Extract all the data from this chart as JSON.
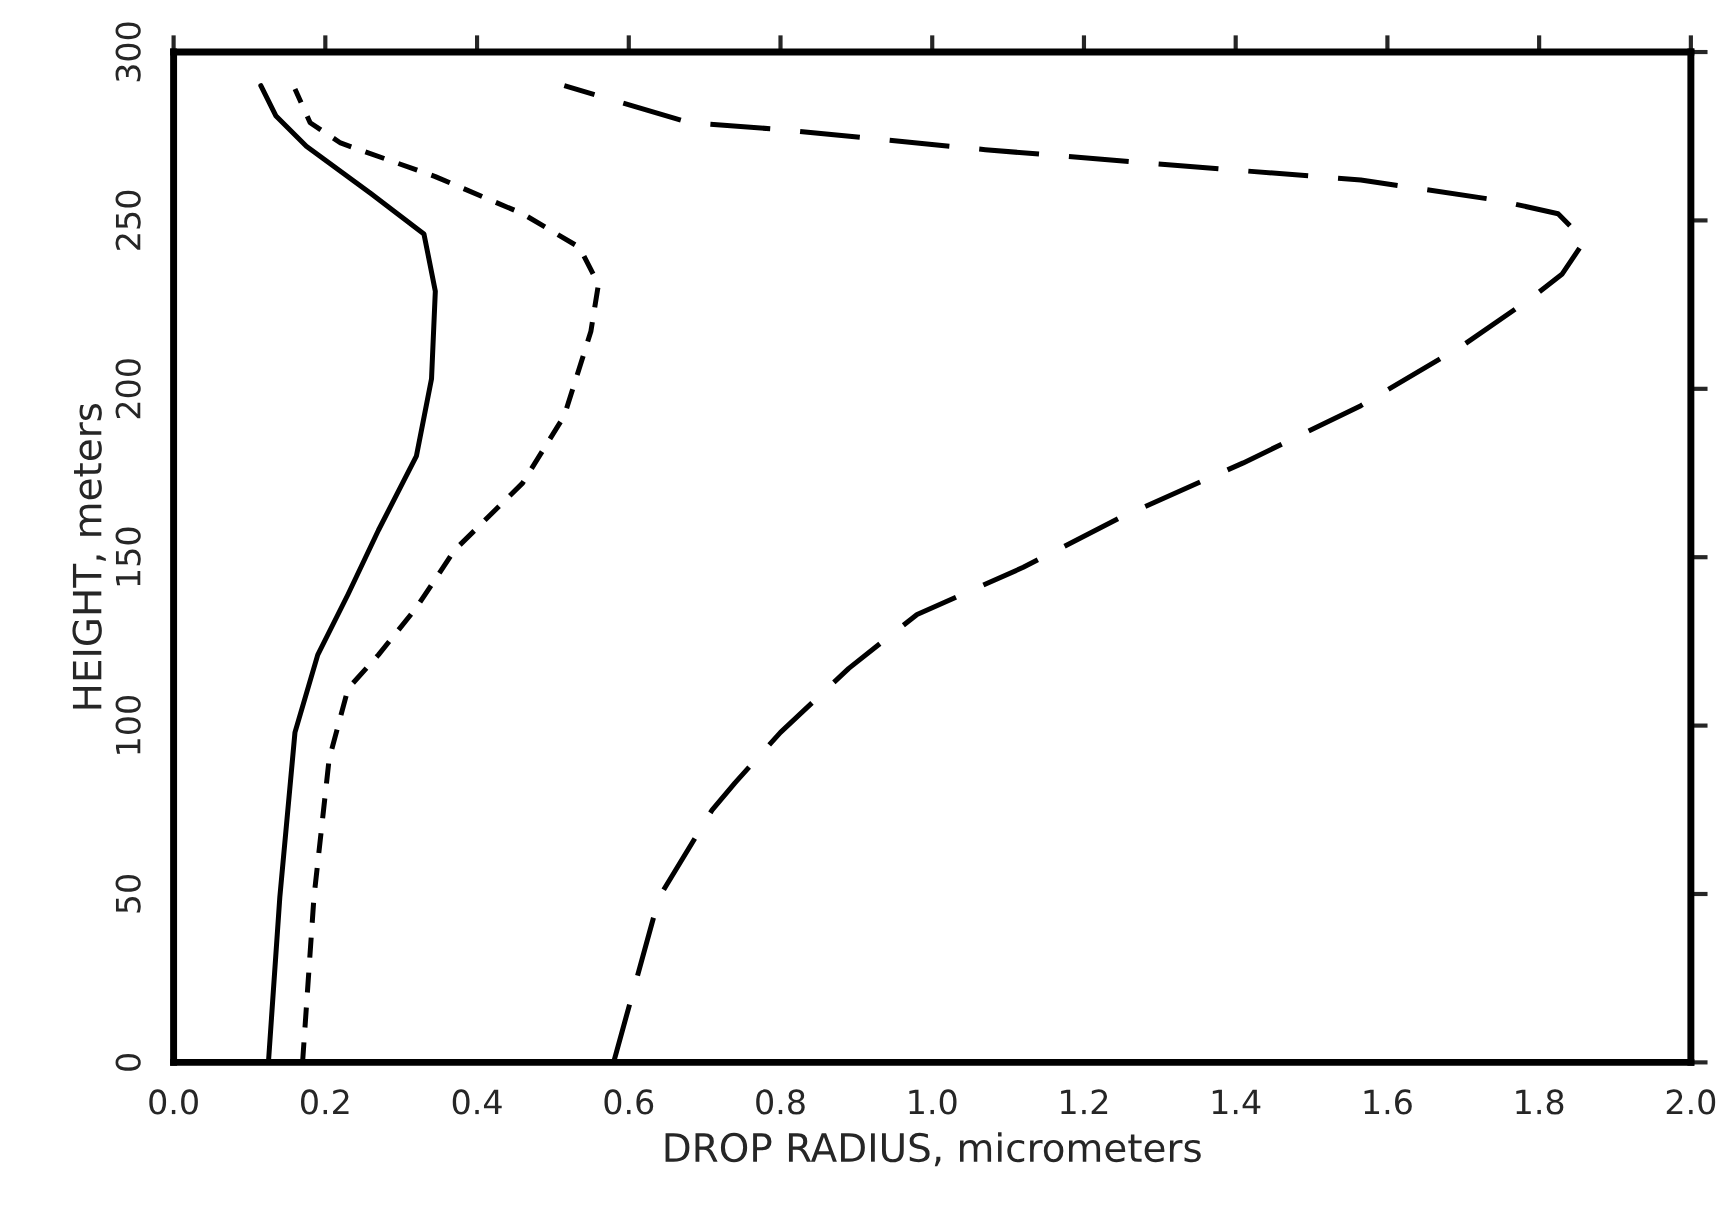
{
  "chart_data": {
    "type": "line",
    "xlabel": "DROP RADIUS, micrometers",
    "ylabel": "HEIGHT, meters",
    "xlim": [
      0.0,
      2.0
    ],
    "xticks": [
      {
        "value": 0,
        "label": "0.0"
      },
      {
        "value": 0.2,
        "label": "0.2"
      },
      {
        "value": 0.4,
        "label": "0.4"
      },
      {
        "value": 0.6,
        "label": "0.6"
      },
      {
        "value": 0.8,
        "label": "0.8"
      },
      {
        "value": 1.0,
        "label": "1.0"
      },
      {
        "value": 1.2,
        "label": "1.2"
      },
      {
        "value": 1.4,
        "label": "1.4"
      },
      {
        "value": 1.6,
        "label": "1.6"
      },
      {
        "value": 1.8,
        "label": "1.8"
      },
      {
        "value": 2.0,
        "label": "2.0"
      }
    ],
    "ylim": [
      0,
      300
    ],
    "yticks": [
      0,
      50,
      100,
      150,
      200,
      250,
      300
    ],
    "series": [
      {
        "color": "#000000",
        "line_style": "solid",
        "x": [
          0.125,
          0.14,
          0.16,
          0.19,
          0.23,
          0.27,
          0.32,
          0.34,
          0.345,
          0.33,
          0.26,
          0.175,
          0.135,
          0.115
        ],
        "values": [
          0,
          49,
          98,
          121,
          139,
          158,
          180,
          203,
          229,
          246,
          258,
          272,
          281,
          290
        ]
      },
      {
        "color": "#000000",
        "line_style": "dashed",
        "x": [
          0.17,
          0.185,
          0.205,
          0.23,
          0.27,
          0.32,
          0.37,
          0.46,
          0.515,
          0.55,
          0.56,
          0.535,
          0.46,
          0.345,
          0.22,
          0.18,
          0.16
        ],
        "values": [
          0,
          49,
          90,
          111,
          121,
          135,
          152,
          172,
          192,
          217,
          231,
          242,
          252,
          263,
          273,
          279,
          289
        ]
      },
      {
        "color": "#000000",
        "line_style": "longdash",
        "x": [
          0.58,
          0.64,
          0.71,
          0.74,
          0.8,
          0.89,
          0.98,
          1.12,
          1.25,
          1.41,
          1.565,
          1.7,
          1.79,
          1.83,
          1.86,
          1.825,
          1.745,
          1.565,
          1.34,
          1.07,
          0.8,
          0.68,
          0.515
        ],
        "values": [
          0,
          49,
          75,
          83,
          98,
          117,
          133,
          147,
          162,
          178,
          195,
          213,
          227,
          234,
          244,
          252,
          256,
          262,
          266,
          271,
          277,
          279,
          290
        ]
      }
    ]
  }
}
